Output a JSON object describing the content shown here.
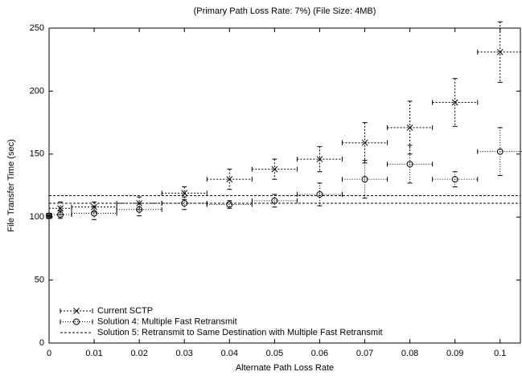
{
  "chart_data": {
    "type": "errorbar",
    "title": "(Primary Path Loss Rate: 7%)  (File Size: 4MB)",
    "x_label": "Alternate Path Loss Rate",
    "y_label": "File Transfer Time (sec)",
    "xlim": [
      0,
      0.1045
    ],
    "ylim": [
      0,
      250
    ],
    "xticks": [
      0,
      0.01,
      0.02,
      0.03,
      0.04,
      0.05,
      0.06,
      0.07,
      0.08,
      0.09,
      0.1
    ],
    "yticks": [
      0,
      50,
      100,
      150,
      200,
      250
    ],
    "legend": "bottom-left",
    "series": [
      {
        "name": "Current SCTP",
        "color": "#000000",
        "marker": "x",
        "dash": "2,2",
        "x": [
          0,
          0.0025,
          0.01,
          0.02,
          0.03,
          0.04,
          0.05,
          0.06,
          0.07,
          0.08,
          0.09,
          0.1
        ],
        "xerr": [
          0.0005,
          0.0025,
          0.005,
          0.005,
          0.005,
          0.005,
          0.005,
          0.005,
          0.005,
          0.005,
          0.005,
          0.005
        ],
        "values": [
          101,
          107,
          108,
          111,
          119,
          130,
          138,
          146,
          159,
          171,
          191,
          231
        ],
        "yerr": [
          2,
          5,
          4,
          5,
          5,
          8,
          8,
          10,
          16,
          21,
          19,
          24
        ]
      },
      {
        "name": "Solution 4: Multiple Fast Retransmit",
        "color": "#000000",
        "marker": "o",
        "dash": "1,2",
        "x": [
          0,
          0.0025,
          0.01,
          0.02,
          0.03,
          0.04,
          0.05,
          0.06,
          0.07,
          0.08,
          0.09,
          0.1
        ],
        "xerr": [
          0.0005,
          0.0025,
          0.005,
          0.005,
          0.005,
          0.005,
          0.005,
          0.005,
          0.005,
          0.005,
          0.005,
          0.005
        ],
        "values": [
          101,
          102,
          103,
          106,
          111,
          110,
          113,
          118,
          130,
          142,
          130,
          152
        ],
        "yerr": [
          2,
          3,
          5,
          5,
          5,
          3,
          5,
          9,
          15,
          15,
          6,
          19
        ]
      },
      {
        "name": "Solution 5: Retransmit to Same Destination with Multiple Fast Retransmit",
        "color": "#000000",
        "marker": "hline",
        "dash": "3,2",
        "values": [
          117,
          111
        ]
      }
    ]
  }
}
